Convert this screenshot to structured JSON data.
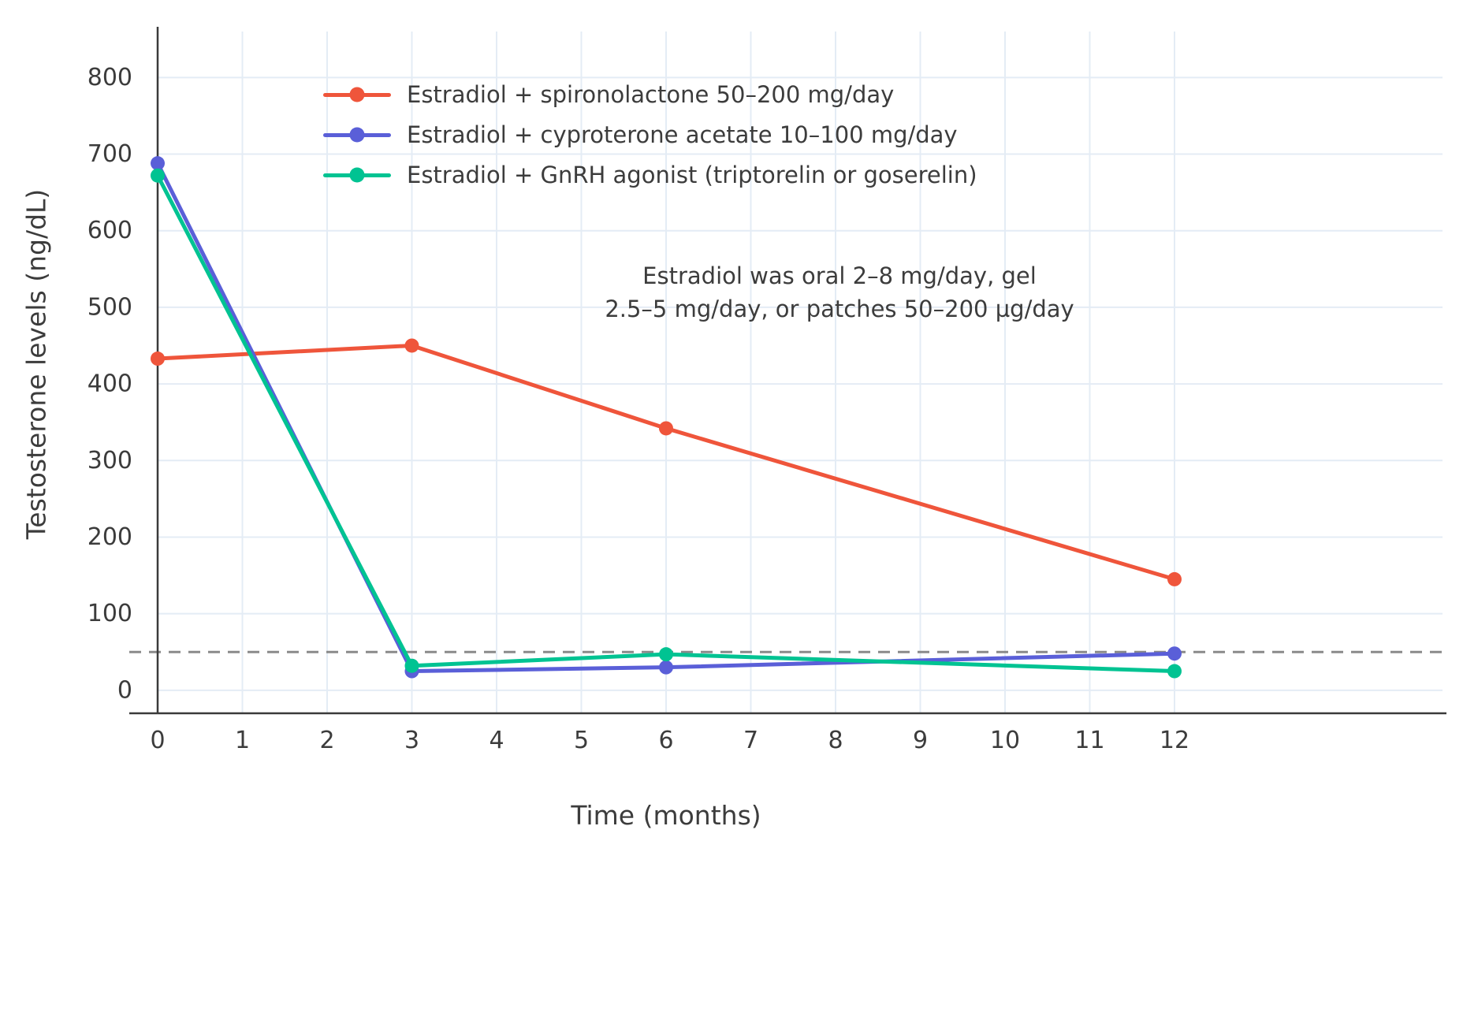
{
  "chart_data": {
    "type": "line",
    "xlabel": "Time (months)",
    "ylabel": "Testosterone levels (ng/dL)",
    "x": [
      0,
      3,
      6,
      12
    ],
    "series": [
      {
        "name": "Estradiol + spironolactone 50–200 mg/day",
        "color": "#EF553B",
        "values": [
          433,
          450,
          342,
          145
        ]
      },
      {
        "name": "Estradiol + cyproterone acetate 10–100 mg/day",
        "color": "#5A5FD8",
        "values": [
          688,
          25,
          30,
          48
        ]
      },
      {
        "name": "Estradiol + GnRH agonist (triptorelin or goserelin)",
        "color": "#00C392",
        "values": [
          672,
          32,
          47,
          25
        ]
      }
    ],
    "xticks": [
      0,
      1,
      2,
      3,
      4,
      5,
      6,
      7,
      8,
      9,
      10,
      11,
      12
    ],
    "yticks": [
      0,
      100,
      200,
      300,
      400,
      500,
      600,
      700,
      800
    ],
    "xlim": [
      0,
      12
    ],
    "ylim": [
      0,
      860
    ],
    "grid": true,
    "legend_position": "inside-top-left",
    "annotation": "Estradiol was oral 2–8 mg/day, gel\n2.5–5 mg/day, or patches 50–200 µg/day",
    "reference_line": {
      "y": 50,
      "style": "dashed",
      "color": "#8A8A8A"
    }
  },
  "style": {
    "background": "#FFFFFF",
    "grid_color": "#E4ECF5",
    "axis_color": "#3A3A3A",
    "text_color": "#3C3C3C"
  }
}
